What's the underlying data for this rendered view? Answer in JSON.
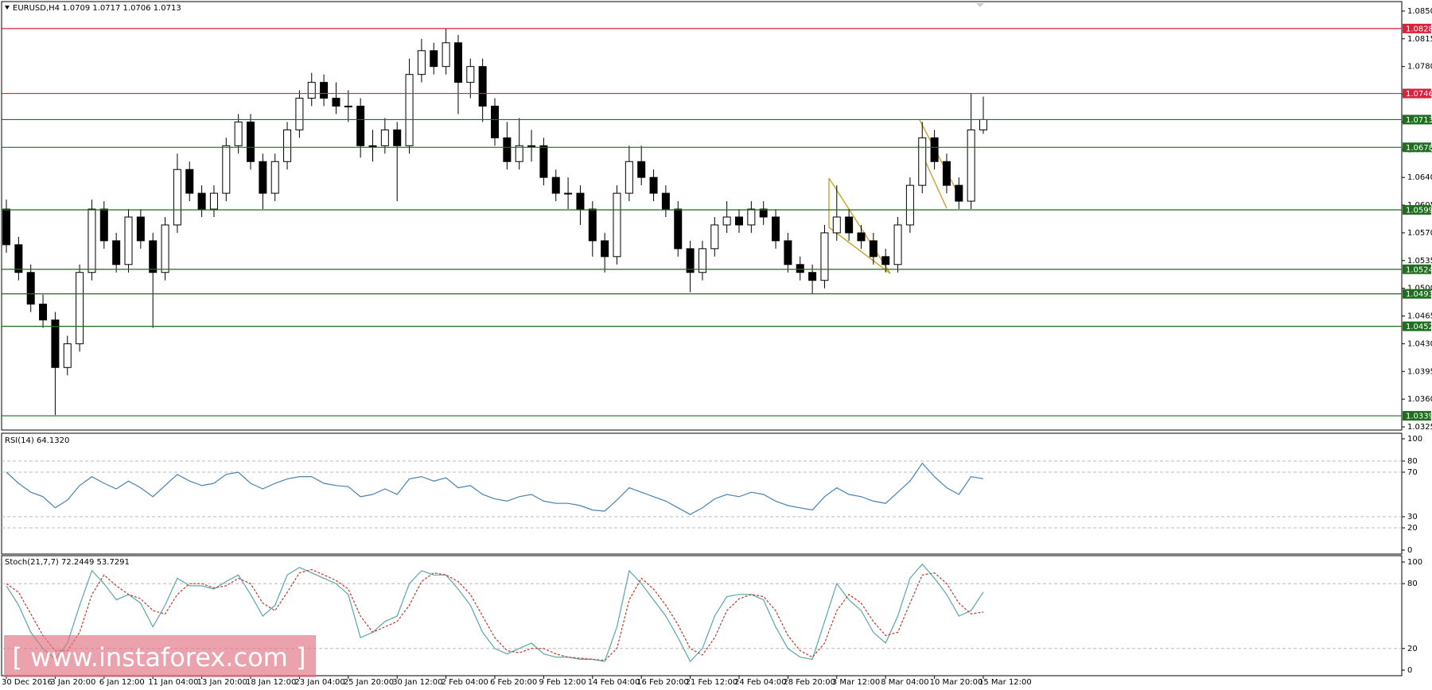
{
  "header": "EURUSD,H4  1.0709 1.0717 1.0706 1.0713",
  "watermark": "[ www.instaforex.com ]",
  "chart_data": [
    {
      "type": "candlestick",
      "categories": [
        "30 Dec 2016",
        null,
        null,
        null,
        "3 Jan 20:00",
        null,
        null,
        null,
        "6 Jan 12:00",
        null,
        null,
        null,
        "11 Jan 04:00",
        null,
        null,
        null,
        "13 Jan 20:00",
        null,
        null,
        null,
        "18 Jan 12:00",
        null,
        null,
        null,
        "23 Jan 04:00",
        null,
        null,
        null,
        "25 Jan 20:00",
        null,
        null,
        null,
        "30 Jan 12:00",
        null,
        null,
        null,
        "2 Feb 04:00",
        null,
        null,
        null,
        "6 Feb 20:00",
        null,
        null,
        null,
        "9 Feb 12:00",
        null,
        null,
        null,
        "14 Feb 04:00",
        null,
        null,
        null,
        "16 Feb 20:00",
        null,
        null,
        null,
        "21 Feb 12:00",
        null,
        null,
        null,
        "24 Feb 04:00",
        null,
        null,
        null,
        "28 Feb 20:00",
        null,
        null,
        null,
        "3 Mar 12:00",
        null,
        null,
        null,
        "8 Mar 04:00",
        null,
        null,
        null,
        "10 Mar 20:00",
        null,
        null,
        null,
        "15 Mar 12:00"
      ],
      "ohlc": [
        [
          1.06,
          1.0612,
          1.0545,
          1.0555
        ],
        [
          1.0555,
          1.0565,
          1.051,
          1.052
        ],
        [
          1.052,
          1.053,
          1.047,
          1.048
        ],
        [
          1.048,
          1.0492,
          1.045,
          1.046
        ],
        [
          1.046,
          1.047,
          1.034,
          1.04
        ],
        [
          1.04,
          1.044,
          1.039,
          1.043
        ],
        [
          1.043,
          1.053,
          1.042,
          1.052
        ],
        [
          1.052,
          1.0612,
          1.051,
          1.06
        ],
        [
          1.06,
          1.061,
          1.055,
          1.056
        ],
        [
          1.056,
          1.057,
          1.052,
          1.053
        ],
        [
          1.053,
          1.06,
          1.052,
          1.059
        ],
        [
          1.059,
          1.06,
          1.055,
          1.056
        ],
        [
          1.056,
          1.057,
          1.045,
          1.052
        ],
        [
          1.052,
          1.059,
          1.051,
          1.058
        ],
        [
          1.058,
          1.067,
          1.057,
          1.065
        ],
        [
          1.065,
          1.066,
          1.061,
          1.062
        ],
        [
          1.062,
          1.063,
          1.059,
          1.06
        ],
        [
          1.06,
          1.063,
          1.059,
          1.062
        ],
        [
          1.062,
          1.069,
          1.061,
          1.068
        ],
        [
          1.068,
          1.072,
          1.067,
          1.071
        ],
        [
          1.071,
          1.072,
          1.065,
          1.066
        ],
        [
          1.066,
          1.067,
          1.06,
          1.062
        ],
        [
          1.062,
          1.067,
          1.061,
          1.066
        ],
        [
          1.066,
          1.071,
          1.065,
          1.07
        ],
        [
          1.07,
          1.075,
          1.069,
          1.074
        ],
        [
          1.074,
          1.0772,
          1.073,
          1.076
        ],
        [
          1.076,
          1.077,
          1.073,
          1.074
        ],
        [
          1.074,
          1.076,
          1.072,
          1.073
        ],
        [
          1.073,
          1.075,
          1.071,
          1.073
        ],
        [
          1.073,
          1.074,
          1.0665,
          1.068
        ],
        [
          1.068,
          1.07,
          1.066,
          1.068
        ],
        [
          1.068,
          1.0715,
          1.067,
          1.07
        ],
        [
          1.07,
          1.071,
          1.061,
          1.068
        ],
        [
          1.068,
          1.079,
          1.067,
          1.077
        ],
        [
          1.077,
          1.0815,
          1.076,
          1.08
        ],
        [
          1.08,
          1.081,
          1.077,
          1.078
        ],
        [
          1.078,
          1.0828,
          1.077,
          1.081
        ],
        [
          1.081,
          1.082,
          1.072,
          1.076
        ],
        [
          1.076,
          1.079,
          1.074,
          1.078
        ],
        [
          1.078,
          1.079,
          1.071,
          1.073
        ],
        [
          1.073,
          1.074,
          1.068,
          1.069
        ],
        [
          1.069,
          1.071,
          1.065,
          1.066
        ],
        [
          1.066,
          1.0715,
          1.065,
          1.068
        ],
        [
          1.068,
          1.07,
          1.066,
          1.068
        ],
        [
          1.068,
          1.069,
          1.063,
          1.064
        ],
        [
          1.064,
          1.065,
          1.061,
          1.062
        ],
        [
          1.062,
          1.064,
          1.06,
          1.062
        ],
        [
          1.062,
          1.063,
          1.058,
          1.06
        ],
        [
          1.06,
          1.061,
          1.054,
          1.056
        ],
        [
          1.056,
          1.057,
          1.052,
          1.054
        ],
        [
          1.054,
          1.063,
          1.053,
          1.062
        ],
        [
          1.062,
          1.068,
          1.061,
          1.066
        ],
        [
          1.066,
          1.068,
          1.063,
          1.064
        ],
        [
          1.064,
          1.065,
          1.061,
          1.062
        ],
        [
          1.062,
          1.063,
          1.059,
          1.06
        ],
        [
          1.06,
          1.061,
          1.054,
          1.055
        ],
        [
          1.055,
          1.056,
          1.0495,
          1.052
        ],
        [
          1.052,
          1.056,
          1.051,
          1.055
        ],
        [
          1.055,
          1.059,
          1.054,
          1.058
        ],
        [
          1.058,
          1.061,
          1.057,
          1.059
        ],
        [
          1.059,
          1.06,
          1.057,
          1.058
        ],
        [
          1.058,
          1.061,
          1.057,
          1.06
        ],
        [
          1.06,
          1.061,
          1.058,
          1.059
        ],
        [
          1.059,
          1.06,
          1.055,
          1.056
        ],
        [
          1.056,
          1.057,
          1.052,
          1.053
        ],
        [
          1.053,
          1.054,
          1.051,
          1.052
        ],
        [
          1.052,
          1.053,
          1.0493,
          1.051
        ],
        [
          1.051,
          1.058,
          1.05,
          1.057
        ],
        [
          1.057,
          1.063,
          1.056,
          1.059
        ],
        [
          1.059,
          1.06,
          1.056,
          1.057
        ],
        [
          1.057,
          1.058,
          1.055,
          1.056
        ],
        [
          1.056,
          1.057,
          1.053,
          1.054
        ],
        [
          1.054,
          1.055,
          1.052,
          1.053
        ],
        [
          1.053,
          1.059,
          1.052,
          1.058
        ],
        [
          1.058,
          1.064,
          1.057,
          1.063
        ],
        [
          1.063,
          1.071,
          1.062,
          1.069
        ],
        [
          1.069,
          1.07,
          1.065,
          1.066
        ],
        [
          1.066,
          1.067,
          1.062,
          1.063
        ],
        [
          1.063,
          1.064,
          1.06,
          1.061
        ],
        [
          1.061,
          1.0746,
          1.06,
          1.07
        ],
        [
          1.07,
          1.0742,
          1.0695,
          1.0713
        ]
      ],
      "ylim": [
        1.032,
        1.0864
      ],
      "yticks": [
        1.0325,
        {
          "value": 1.036,
          "label": "1.0360"
        },
        1.0395,
        {
          "value": 1.043,
          "label": "1.0430"
        },
        1.0465,
        {
          "value": 1.05,
          "label": "1.0500"
        },
        1.0535,
        {
          "value": 1.057,
          "label": "1.0570"
        },
        1.0605,
        {
          "value": 1.064,
          "label": "1.0640"
        },
        1.0675,
        {
          "value": 1.071,
          "label": "1.0710"
        },
        1.0745,
        {
          "value": 1.078,
          "label": "1.0780"
        },
        1.0815,
        {
          "value": 1.085,
          "label": "1.0850"
        }
      ],
      "levels": [
        {
          "value": 1.0828,
          "color": "#d9223b"
        },
        {
          "value": 1.0746,
          "color": "#d9223b"
        },
        {
          "value": 1.0713,
          "color": "#1f6e1f"
        },
        {
          "value": 1.0678,
          "color": "#1f6e1f"
        },
        {
          "value": 1.0599,
          "color": "#1f6e1f"
        },
        {
          "value": 1.0524,
          "color": "#1f6e1f"
        },
        {
          "value": 1.0493,
          "color": "#1f6e1f"
        },
        {
          "value": 1.0452,
          "color": "#1f6e1f"
        },
        {
          "value": 1.0339,
          "color": "#1f6e1f"
        }
      ],
      "grid": false
    },
    {
      "type": "line",
      "title": "RSI(14) 64.1320",
      "series": [
        {
          "color": "#4682b4",
          "dashed": false,
          "values": [
            70,
            60,
            52,
            48,
            38,
            45,
            58,
            66,
            60,
            55,
            62,
            56,
            48,
            58,
            68,
            62,
            58,
            60,
            68,
            70,
            60,
            55,
            60,
            64,
            66,
            66,
            60,
            58,
            57,
            48,
            50,
            55,
            50,
            64,
            66,
            62,
            65,
            56,
            58,
            50,
            46,
            44,
            48,
            50,
            44,
            42,
            42,
            40,
            36,
            35,
            45,
            56,
            52,
            48,
            44,
            38,
            32,
            38,
            46,
            50,
            48,
            52,
            50,
            44,
            40,
            38,
            36,
            48,
            56,
            50,
            48,
            44,
            42,
            52,
            62,
            78,
            66,
            56,
            50,
            66,
            64.13
          ]
        }
      ],
      "ylim": [
        0,
        100
      ],
      "yticks": [
        0,
        20,
        30,
        70,
        80,
        100
      ],
      "grid": true
    },
    {
      "type": "line",
      "title": "Stoch(21,7,7) 72.2449 53.7291",
      "series": [
        {
          "color": "#5aa6a6",
          "dashed": false,
          "values": [
            78,
            60,
            35,
            20,
            10,
            25,
            60,
            92,
            80,
            65,
            70,
            62,
            40,
            60,
            85,
            78,
            78,
            75,
            82,
            88,
            70,
            50,
            60,
            88,
            95,
            90,
            85,
            80,
            70,
            30,
            35,
            45,
            50,
            80,
            92,
            88,
            88,
            75,
            60,
            35,
            20,
            15,
            20,
            25,
            15,
            12,
            12,
            10,
            10,
            8,
            40,
            92,
            80,
            65,
            50,
            30,
            8,
            20,
            50,
            68,
            70,
            70,
            65,
            40,
            20,
            12,
            10,
            45,
            80,
            65,
            55,
            35,
            25,
            50,
            85,
            98,
            85,
            70,
            50,
            55,
            72.24
          ]
        },
        {
          "color": "#c0392b",
          "dashed": true,
          "values": [
            80,
            72,
            52,
            32,
            18,
            18,
            35,
            70,
            88,
            78,
            70,
            66,
            55,
            52,
            70,
            80,
            80,
            76,
            78,
            85,
            80,
            62,
            55,
            72,
            90,
            93,
            88,
            83,
            75,
            50,
            35,
            40,
            45,
            60,
            82,
            90,
            88,
            82,
            70,
            50,
            30,
            18,
            16,
            20,
            20,
            15,
            12,
            11,
            10,
            9,
            20,
            65,
            85,
            75,
            60,
            42,
            20,
            14,
            30,
            55,
            66,
            70,
            68,
            55,
            32,
            18,
            12,
            25,
            55,
            70,
            62,
            45,
            32,
            35,
            62,
            88,
            90,
            80,
            62,
            52,
            53.73
          ]
        }
      ],
      "ylim": [
        0,
        100
      ],
      "yticks": [
        0,
        20,
        80,
        100
      ],
      "grid": true
    }
  ]
}
